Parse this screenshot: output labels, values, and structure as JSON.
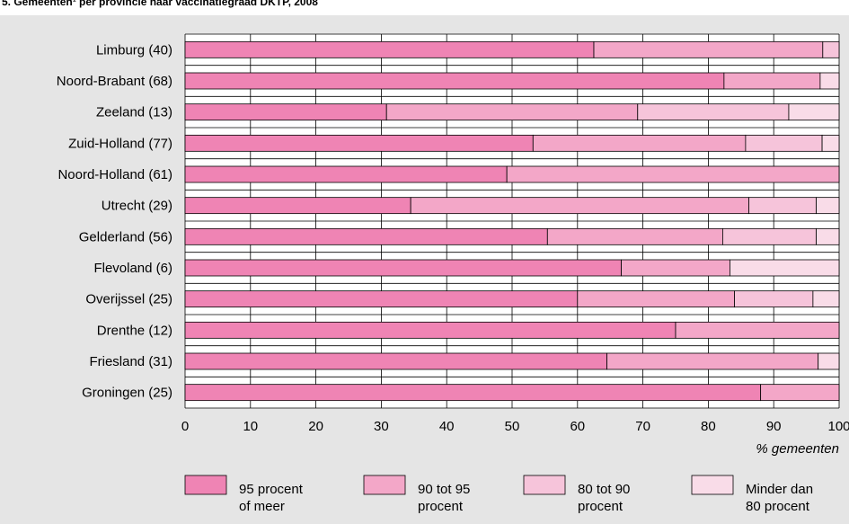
{
  "title": "5. Gemeenten¹ per provincie naar vaccinatiegraad DKTP, 2008",
  "chart_data": {
    "type": "bar",
    "orientation": "horizontal",
    "stacked": true,
    "categories": [
      "Limburg (40)",
      "Noord-Brabant (68)",
      "Zeeland (13)",
      "Zuid-Holland (77)",
      "Noord-Holland (61)",
      "Utrecht (29)",
      "Gelderland (56)",
      "Flevoland (6)",
      "Overijssel (25)",
      "Drenthe (12)",
      "Friesland (31)",
      "Groningen (25)"
    ],
    "series": [
      {
        "name": "95 procent of meer",
        "color": "#ef84b4",
        "values": [
          62.5,
          82.4,
          30.8,
          53.2,
          49.2,
          34.5,
          55.4,
          66.7,
          60.0,
          75.0,
          64.5,
          88.0
        ]
      },
      {
        "name": "90 tot 95 procent",
        "color": "#f3a7c8",
        "values": [
          35.0,
          14.7,
          38.4,
          32.5,
          50.8,
          51.7,
          26.8,
          16.6,
          24.0,
          25.0,
          32.3,
          12.0
        ]
      },
      {
        "name": "80 tot 90 procent",
        "color": "#f6c4da",
        "values": [
          2.5,
          0,
          23.1,
          11.7,
          0,
          10.3,
          14.3,
          0,
          12.0,
          0,
          0,
          0
        ]
      },
      {
        "name": "Minder dan 80 procent",
        "color": "#f9dce8",
        "values": [
          0,
          2.9,
          7.7,
          2.6,
          0,
          3.5,
          3.5,
          16.7,
          4.0,
          0,
          3.2,
          0
        ]
      }
    ],
    "xticks": [
      "0",
      "10",
      "20",
      "30",
      "40",
      "50",
      "60",
      "70",
      "80",
      "90",
      "100"
    ],
    "xlim": [
      0,
      100
    ],
    "xlabel": "% gemeenten",
    "grid": true,
    "legend_position": "bottom"
  }
}
